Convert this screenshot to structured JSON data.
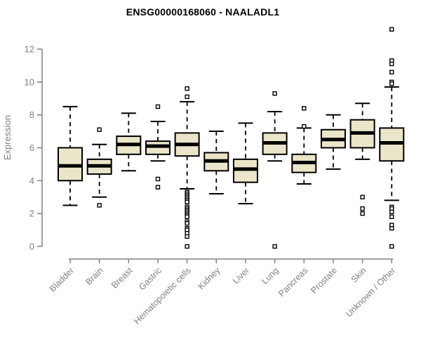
{
  "page": {
    "background": "#ffffff"
  },
  "chart_data": {
    "type": "boxplot",
    "title": "ENSG00000168060 - NAALADL1",
    "ylabel": "Expression",
    "xlabel": "",
    "ylim": [
      0,
      13.3
    ],
    "yticks": [
      0,
      2,
      4,
      6,
      8,
      10,
      12
    ],
    "grid": false,
    "legend": "none",
    "categories": [
      "Bladder",
      "Brain",
      "Breast",
      "Gastric",
      "Hematopoietic cells",
      "Kidney",
      "Liver",
      "Lung",
      "Pancreas",
      "Prostate",
      "Skin",
      "Unknown / Other"
    ],
    "series": [
      {
        "category": "Bladder",
        "whisker_low": 2.5,
        "q1": 4.0,
        "median": 4.9,
        "q3": 6.0,
        "whisker_high": 8.5,
        "outliers": []
      },
      {
        "category": "Brain",
        "whisker_low": 3.0,
        "q1": 4.4,
        "median": 4.9,
        "q3": 5.3,
        "whisker_high": 6.2,
        "outliers": [
          7.1,
          2.5
        ]
      },
      {
        "category": "Breast",
        "whisker_low": 4.6,
        "q1": 5.6,
        "median": 6.2,
        "q3": 6.7,
        "whisker_high": 8.1,
        "outliers": []
      },
      {
        "category": "Gastric",
        "whisker_low": 5.2,
        "q1": 5.6,
        "median": 6.1,
        "q3": 6.4,
        "whisker_high": 7.6,
        "outliers": [
          8.5,
          4.1,
          3.6
        ]
      },
      {
        "category": "Hematopoietic cells",
        "whisker_low": 3.5,
        "q1": 5.5,
        "median": 6.2,
        "q3": 6.9,
        "whisker_high": 8.8,
        "outliers": [
          9.6,
          9.1,
          3.3,
          3.2,
          3.1,
          3.0,
          2.9,
          2.8,
          2.7,
          2.4,
          2.3,
          2.2,
          2.1,
          2.0,
          1.9,
          1.8,
          1.5,
          1.4,
          1.1,
          1.0,
          0.8,
          0.6,
          0.0
        ]
      },
      {
        "category": "Kidney",
        "whisker_low": 3.2,
        "q1": 4.6,
        "median": 5.2,
        "q3": 5.7,
        "whisker_high": 7.0,
        "outliers": []
      },
      {
        "category": "Liver",
        "whisker_low": 2.6,
        "q1": 3.9,
        "median": 4.7,
        "q3": 5.3,
        "whisker_high": 7.5,
        "outliers": []
      },
      {
        "category": "Lung",
        "whisker_low": 5.2,
        "q1": 5.6,
        "median": 6.3,
        "q3": 6.9,
        "whisker_high": 8.2,
        "outliers": [
          9.3,
          0.0
        ]
      },
      {
        "category": "Pancreas",
        "whisker_low": 3.8,
        "q1": 4.5,
        "median": 5.1,
        "q3": 5.6,
        "whisker_high": 7.2,
        "outliers": [
          8.4,
          7.3
        ]
      },
      {
        "category": "Prostate",
        "whisker_low": 4.7,
        "q1": 6.0,
        "median": 6.5,
        "q3": 7.1,
        "whisker_high": 8.0,
        "outliers": []
      },
      {
        "category": "Skin",
        "whisker_low": 5.3,
        "q1": 6.0,
        "median": 6.9,
        "q3": 7.7,
        "whisker_high": 8.7,
        "outliers": [
          3.0,
          2.3,
          2.0
        ]
      },
      {
        "category": "Unknown / Other",
        "whisker_low": 2.8,
        "q1": 5.2,
        "median": 6.3,
        "q3": 7.2,
        "whisker_high": 9.7,
        "outliers": [
          13.2,
          11.3,
          11.1,
          10.6,
          10.0,
          9.9,
          2.4,
          2.3,
          2.1,
          1.8,
          1.3,
          1.1,
          0.0
        ]
      }
    ],
    "colors": {
      "box_fill": "#EBE5C9",
      "box_stroke": "#000000",
      "median_line": "#000000",
      "whisker": "#000000",
      "outlier_fill": "#ffffff",
      "outlier_stroke": "#000000",
      "axis": "#808080",
      "tick_text": "#808080",
      "title_text": "#000000"
    }
  }
}
